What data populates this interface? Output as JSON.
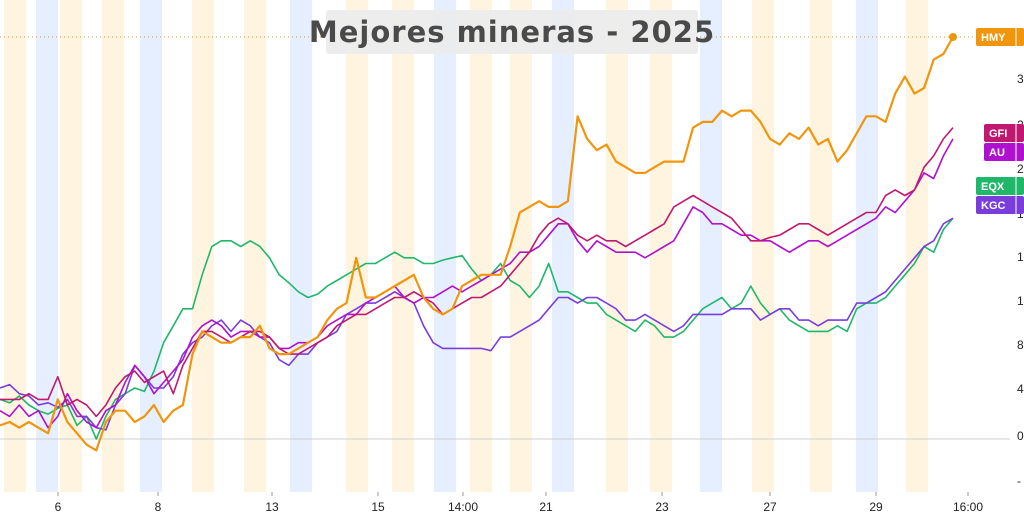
{
  "chart_data": {
    "type": "line",
    "title": "Mejores mineras - 2025",
    "x_tick_labels": [
      "6",
      "8",
      "13",
      "15",
      "14:00",
      "21",
      "23",
      "27",
      "29",
      "16:00"
    ],
    "y_tick_labels": [
      "-",
      "0",
      "4",
      "8",
      "1",
      "1",
      "1",
      "2",
      "2",
      "3"
    ],
    "ylim": [
      -5,
      40
    ],
    "grid": "vertical session shading",
    "legend": "right edge tags",
    "n_points": 100,
    "series": [
      {
        "name": "EQX",
        "color": "#1fb86a",
        "values": [
          3.5,
          3.2,
          3.8,
          3.0,
          2.5,
          2.2,
          2.7,
          3.0,
          1.2,
          2.0,
          0.0,
          2.0,
          3.5,
          4.0,
          4.5,
          4.2,
          6.0,
          8.5,
          10.0,
          11.5,
          11.5,
          14.5,
          17.0,
          17.5,
          17.5,
          17.0,
          17.5,
          17.0,
          16.0,
          14.5,
          13.8,
          13.0,
          12.5,
          12.8,
          13.5,
          14.0,
          14.5,
          15.0,
          15.5,
          15.5,
          16.0,
          16.5,
          16.0,
          16.0,
          15.5,
          15.5,
          15.8,
          16.0,
          16.2,
          15.0,
          14.0,
          14.5,
          15.5,
          14.0,
          13.5,
          12.5,
          13.5,
          15.5,
          13.0,
          13.0,
          12.5,
          12.0,
          12.0,
          11.0,
          10.5,
          10.0,
          9.5,
          10.5,
          10.0,
          9.0,
          9.0,
          9.5,
          10.5,
          11.5,
          12.0,
          12.5,
          11.5,
          12.0,
          13.5,
          12.0,
          11.0,
          11.5,
          10.5,
          10.0,
          9.5,
          9.5,
          9.5,
          10.0,
          9.5,
          11.5,
          12.0,
          12.0,
          12.5,
          13.5,
          14.5,
          15.5,
          17.0,
          16.5,
          18.5,
          19.5
        ]
      },
      {
        "name": "KGC",
        "color": "#7a3ddb",
        "values": [
          4.5,
          4.8,
          4.0,
          3.8,
          3.0,
          3.2,
          2.8,
          3.5,
          2.0,
          2.0,
          1.0,
          0.8,
          3.0,
          4.0,
          6.5,
          5.5,
          4.5,
          4.5,
          5.5,
          7.5,
          8.5,
          9.0,
          10.0,
          10.5,
          9.5,
          10.5,
          10.0,
          9.0,
          8.5,
          7.0,
          6.5,
          7.5,
          7.5,
          8.5,
          9.0,
          9.5,
          11.0,
          11.5,
          12.0,
          12.0,
          12.5,
          13.0,
          12.5,
          12.0,
          10.0,
          8.5,
          8.0,
          8.0,
          8.0,
          8.0,
          8.0,
          7.8,
          9.0,
          9.0,
          9.5,
          10.0,
          10.5,
          11.5,
          12.5,
          12.5,
          12.0,
          12.5,
          12.5,
          12.0,
          11.5,
          10.5,
          10.5,
          11.0,
          10.5,
          10.0,
          9.5,
          10.0,
          11.0,
          11.0,
          11.0,
          11.0,
          11.5,
          11.5,
          11.5,
          10.5,
          11.0,
          11.5,
          11.5,
          10.5,
          10.5,
          10.0,
          10.5,
          10.5,
          10.5,
          12.0,
          12.0,
          12.5,
          13.0,
          14.0,
          15.0,
          16.0,
          17.0,
          17.5,
          19.0,
          19.5
        ]
      },
      {
        "name": "AU",
        "color": "#b010d0",
        "values": [
          2.5,
          2.0,
          3.0,
          2.0,
          2.5,
          1.0,
          2.0,
          4.0,
          2.5,
          1.5,
          1.0,
          2.5,
          3.0,
          5.0,
          6.5,
          5.5,
          4.0,
          5.0,
          6.0,
          7.0,
          9.0,
          10.0,
          10.5,
          10.0,
          9.0,
          9.5,
          9.5,
          9.0,
          9.0,
          8.0,
          8.0,
          8.5,
          8.5,
          9.0,
          10.0,
          10.5,
          11.0,
          11.0,
          12.0,
          12.5,
          13.0,
          13.5,
          12.5,
          12.0,
          12.5,
          12.5,
          13.0,
          13.5,
          13.0,
          13.5,
          14.0,
          14.5,
          15.0,
          15.5,
          16.5,
          16.5,
          17.0,
          18.0,
          19.0,
          19.0,
          17.5,
          16.5,
          17.5,
          17.0,
          16.5,
          16.5,
          16.5,
          16.0,
          16.5,
          17.0,
          17.5,
          19.0,
          20.5,
          20.0,
          19.0,
          19.0,
          18.5,
          18.0,
          18.0,
          17.5,
          17.5,
          17.0,
          16.5,
          17.0,
          17.5,
          17.5,
          17.0,
          17.5,
          18.0,
          18.5,
          19.0,
          19.5,
          20.5,
          20.0,
          21.0,
          22.0,
          23.5,
          23.0,
          25.0,
          26.5
        ]
      },
      {
        "name": "GFI",
        "color": "#c01870",
        "values": [
          3.5,
          3.5,
          3.5,
          4.0,
          3.5,
          3.5,
          5.5,
          3.0,
          3.5,
          3.0,
          2.0,
          3.0,
          4.5,
          5.5,
          6.0,
          5.0,
          5.5,
          6.0,
          4.0,
          6.5,
          8.0,
          9.5,
          9.5,
          9.0,
          8.5,
          9.0,
          9.5,
          9.5,
          9.0,
          8.0,
          7.5,
          7.5,
          8.0,
          8.5,
          9.0,
          10.0,
          10.5,
          11.0,
          11.0,
          11.5,
          12.0,
          12.5,
          12.5,
          13.0,
          12.5,
          12.0,
          11.0,
          11.5,
          12.0,
          12.5,
          12.5,
          13.0,
          13.5,
          14.5,
          15.5,
          16.5,
          18.0,
          19.0,
          19.5,
          19.0,
          18.0,
          17.5,
          18.0,
          17.5,
          17.5,
          17.0,
          17.5,
          18.0,
          18.5,
          19.0,
          20.5,
          21.0,
          21.5,
          21.0,
          20.5,
          20.0,
          19.5,
          18.5,
          17.5,
          17.5,
          17.8,
          18.0,
          18.5,
          19.0,
          19.0,
          18.5,
          18.0,
          18.5,
          19.0,
          19.5,
          20.0,
          20.0,
          21.5,
          22.0,
          21.5,
          22.0,
          24.0,
          25.0,
          26.5,
          27.5
        ]
      },
      {
        "name": "HMY",
        "color": "#f0950c",
        "values": [
          1.2,
          1.5,
          1.0,
          1.5,
          1.0,
          0.5,
          3.5,
          1.5,
          0.5,
          -0.5,
          -1.0,
          1.5,
          2.5,
          2.5,
          1.5,
          2.0,
          3.0,
          1.5,
          2.5,
          3.0,
          7.5,
          9.5,
          9.0,
          8.5,
          8.5,
          9.0,
          9.0,
          10.0,
          8.0,
          7.5,
          7.5,
          8.0,
          8.5,
          9.0,
          10.5,
          11.5,
          12.0,
          16.0,
          12.5,
          12.5,
          13.0,
          13.5,
          14.0,
          14.5,
          12.5,
          11.5,
          11.0,
          11.5,
          13.5,
          14.0,
          14.5,
          14.5,
          14.5,
          17.0,
          20.0,
          20.5,
          21.0,
          20.5,
          20.5,
          21.0,
          28.5,
          26.5,
          25.5,
          26.0,
          24.5,
          24.0,
          23.5,
          23.5,
          24.0,
          24.5,
          24.5,
          24.5,
          27.5,
          28.0,
          28.0,
          29.0,
          28.5,
          29.0,
          29.0,
          28.0,
          26.5,
          26.0,
          27.0,
          26.5,
          27.5,
          26.0,
          26.5,
          24.5,
          25.5,
          27.0,
          28.5,
          28.5,
          28.0,
          30.5,
          32.0,
          30.5,
          31.0,
          33.5,
          34.0,
          35.5
        ]
      }
    ]
  }
}
